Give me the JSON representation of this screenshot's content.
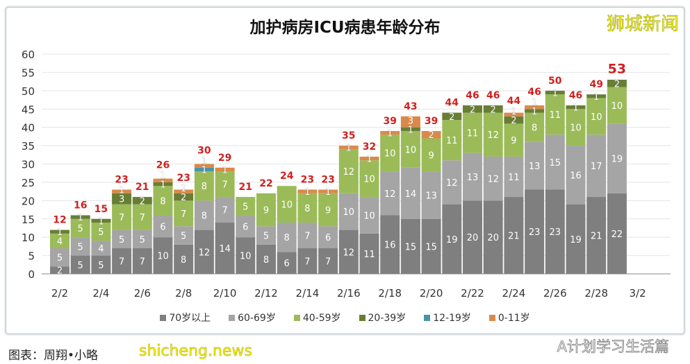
{
  "chart_data": {
    "type": "bar",
    "stacked": true,
    "title": "加护病房ICU病患年龄分布",
    "categories": [
      "2/2",
      "2/3",
      "2/4",
      "2/5",
      "2/6",
      "2/7",
      "2/8",
      "2/9",
      "2/10",
      "2/11",
      "2/12",
      "2/13",
      "2/14",
      "2/15",
      "2/16",
      "2/17",
      "2/18",
      "2/19",
      "2/20",
      "2/21",
      "2/22",
      "2/23",
      "2/24",
      "2/25",
      "2/26",
      "2/27",
      "2/28",
      "2/29"
    ],
    "x_tick_labels": [
      "2/2",
      "2/4",
      "2/6",
      "2/8",
      "2/10",
      "2/12",
      "2/14",
      "2/16",
      "2/18",
      "2/20",
      "2/22",
      "2/24",
      "2/26",
      "2/28",
      "3/2"
    ],
    "ylim": [
      0,
      60
    ],
    "y_ticks": [
      0,
      5,
      10,
      15,
      20,
      25,
      30,
      35,
      40,
      45,
      50,
      55,
      60
    ],
    "grid": true,
    "legend_position": "bottom",
    "series": [
      {
        "name": "70岁以上",
        "color": "#7f7f7f",
        "values": [
          2,
          5,
          5,
          7,
          7,
          10,
          8,
          12,
          14,
          10,
          8,
          6,
          7,
          7,
          12,
          11,
          16,
          15,
          15,
          19,
          20,
          20,
          21,
          23,
          23,
          19,
          21,
          22
        ]
      },
      {
        "name": "60-69岁",
        "color": "#a5a5a5",
        "values": [
          5,
          5,
          4,
          5,
          5,
          6,
          5,
          8,
          7,
          6,
          5,
          8,
          7,
          6,
          10,
          10,
          12,
          14,
          13,
          12,
          13,
          12,
          11,
          13,
          15,
          16,
          17,
          19
        ]
      },
      {
        "name": "40-59岁",
        "color": "#9bbb59",
        "values": [
          4,
          5,
          5,
          7,
          7,
          8,
          7,
          8,
          7,
          5,
          9,
          10,
          8,
          9,
          12,
          10,
          10,
          10,
          9,
          11,
          11,
          12,
          9,
          8,
          11,
          10,
          10,
          10
        ]
      },
      {
        "name": "20-39岁",
        "color": "#687e34",
        "values": [
          1,
          1,
          1,
          3,
          2,
          1,
          2,
          0,
          0,
          0,
          0,
          0,
          0,
          0,
          0,
          0,
          0,
          1,
          0,
          2,
          2,
          2,
          2,
          1,
          1,
          1,
          1,
          2
        ]
      },
      {
        "name": "12-19岁",
        "color": "#4a94a8",
        "values": [
          0,
          0,
          0,
          0,
          0,
          0,
          0,
          1,
          0,
          0,
          0,
          0,
          0,
          0,
          0,
          0,
          0,
          0,
          0,
          0,
          0,
          0,
          0,
          0,
          0,
          0,
          0,
          0
        ]
      },
      {
        "name": "0-11岁",
        "color": "#d98a4a",
        "values": [
          0,
          0,
          0,
          1,
          0,
          1,
          1,
          1,
          1,
          0,
          0,
          0,
          1,
          1,
          1,
          1,
          1,
          3,
          2,
          0,
          0,
          0,
          1,
          1,
          0,
          0,
          0,
          0
        ]
      }
    ],
    "totals": [
      12,
      16,
      15,
      23,
      21,
      26,
      23,
      30,
      29,
      21,
      22,
      24,
      23,
      23,
      35,
      32,
      39,
      43,
      39,
      44,
      46,
      46,
      44,
      46,
      50,
      46,
      49,
      53
    ],
    "total_label_color": "#d0201f"
  },
  "brand": "狮城新闻",
  "credit": "图表：周翔•小略",
  "watermarks": {
    "site": "shicheng.news",
    "account": "A计划学习生活篇"
  }
}
